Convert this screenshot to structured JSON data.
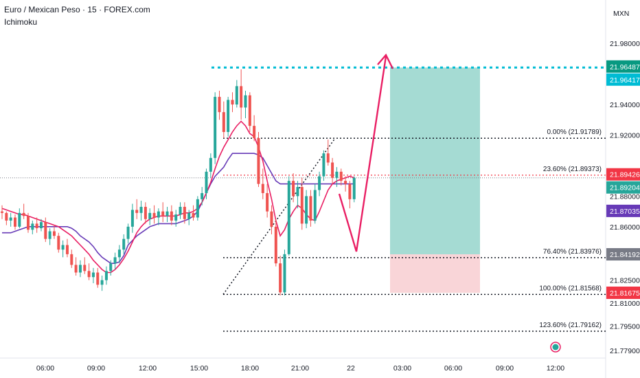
{
  "header": {
    "title": "Euro / Mexican Peso · 15 · FOREX.com",
    "indicator": "Ichimoku"
  },
  "currency": "MXN",
  "colors": {
    "up": "#26a69a",
    "down": "#ef5350",
    "conversion": "#e91e63",
    "base": "#673ab7",
    "target": "#00bcd4",
    "profit_zone": "#a5dbd3",
    "loss_zone": "#f9d5d8",
    "arrow": "#e91e63"
  },
  "chart_data": {
    "type": "candlestick",
    "ylim": [
      21.774,
      22.003
    ],
    "y_ticks": [
      "21.98000",
      "21.94000",
      "21.92000",
      "21.88000",
      "21.86000",
      "21.82500",
      "21.81000",
      "21.79500",
      "21.77900"
    ],
    "x_ticks": [
      "06:00",
      "09:00",
      "12:00",
      "15:00",
      "18:00",
      "21:00",
      "22",
      "03:00",
      "06:00",
      "09:00",
      "12:00"
    ],
    "price_labels": [
      {
        "text": "21.96487",
        "value": 21.96487,
        "color": "#089981"
      },
      {
        "text": "21.96417",
        "value": 21.96417,
        "color": "#00bcd4"
      },
      {
        "text": "21.89426",
        "value": 21.89426,
        "color": "#f23645"
      },
      {
        "text": "21.89204",
        "value": 21.89204,
        "color": "#26a69a"
      },
      {
        "text": "21.87035",
        "value": 21.87035,
        "color": "#673ab7"
      },
      {
        "text": "21.84192",
        "value": 21.84192,
        "color": "#787b86"
      },
      {
        "text": "21.81675",
        "value": 21.81675,
        "color": "#f23645"
      }
    ],
    "fib_levels": [
      {
        "label": "0.00% (21.91789)",
        "value": 21.91789,
        "color": "#131722"
      },
      {
        "label": "23.60% (21.89373)",
        "value": 21.89373,
        "color": "#f23645"
      },
      {
        "label": "76.40% (21.83976)",
        "value": 21.83976,
        "color": "#131722"
      },
      {
        "label": "100.00% (21.81568)",
        "value": 21.81568,
        "color": "#131722"
      },
      {
        "label": "123.60% (21.79162)",
        "value": 21.79162,
        "color": "#131722"
      }
    ],
    "target_price": 21.96417,
    "position": {
      "top": 21.96417,
      "entry": 21.84192,
      "stop": 21.81675
    },
    "candles": [
      [
        21.87,
        21.874,
        21.865,
        21.869
      ],
      [
        21.869,
        21.87,
        21.861,
        21.864
      ],
      [
        21.864,
        21.869,
        21.86,
        21.866
      ],
      [
        21.866,
        21.868,
        21.858,
        21.86
      ],
      [
        21.86,
        21.872,
        21.859,
        21.869
      ],
      [
        21.869,
        21.875,
        21.865,
        21.867
      ],
      [
        21.867,
        21.869,
        21.856,
        21.858
      ],
      [
        21.858,
        21.864,
        21.855,
        21.862
      ],
      [
        21.862,
        21.866,
        21.856,
        21.859
      ],
      [
        21.859,
        21.865,
        21.857,
        21.863
      ],
      [
        21.863,
        21.866,
        21.85,
        21.852
      ],
      [
        21.852,
        21.859,
        21.848,
        21.857
      ],
      [
        21.857,
        21.861,
        21.852,
        21.854
      ],
      [
        21.854,
        21.856,
        21.843,
        21.845
      ],
      [
        21.845,
        21.851,
        21.84,
        21.848
      ],
      [
        21.848,
        21.852,
        21.84,
        21.842
      ],
      [
        21.842,
        21.845,
        21.833,
        21.835
      ],
      [
        21.835,
        21.84,
        21.828,
        21.83
      ],
      [
        21.83,
        21.838,
        21.827,
        21.835
      ],
      [
        21.835,
        21.84,
        21.829,
        21.831
      ],
      [
        21.831,
        21.836,
        21.825,
        21.827
      ],
      [
        21.827,
        21.833,
        21.823,
        21.83
      ],
      [
        21.83,
        21.833,
        21.82,
        21.822
      ],
      [
        21.822,
        21.828,
        21.818,
        21.825
      ],
      [
        21.825,
        21.834,
        21.822,
        21.831
      ],
      [
        21.831,
        21.838,
        21.828,
        21.836
      ],
      [
        21.836,
        21.843,
        21.832,
        21.84
      ],
      [
        21.84,
        21.848,
        21.836,
        21.845
      ],
      [
        21.845,
        21.855,
        21.842,
        21.852
      ],
      [
        21.852,
        21.862,
        21.849,
        21.86
      ],
      [
        21.86,
        21.875,
        21.856,
        21.871
      ],
      [
        21.871,
        21.878,
        21.865,
        21.869
      ],
      [
        21.869,
        21.877,
        21.864,
        21.873
      ],
      [
        21.873,
        21.876,
        21.862,
        21.865
      ],
      [
        21.865,
        21.872,
        21.861,
        21.869
      ],
      [
        21.869,
        21.874,
        21.862,
        21.866
      ],
      [
        21.866,
        21.872,
        21.861,
        21.87
      ],
      [
        21.87,
        21.876,
        21.863,
        21.867
      ],
      [
        21.867,
        21.873,
        21.863,
        21.87
      ],
      [
        21.87,
        21.874,
        21.861,
        21.864
      ],
      [
        21.864,
        21.871,
        21.86,
        21.868
      ],
      [
        21.868,
        21.876,
        21.865,
        21.873
      ],
      [
        21.873,
        21.876,
        21.862,
        21.865
      ],
      [
        21.865,
        21.871,
        21.861,
        21.869
      ],
      [
        21.869,
        21.874,
        21.864,
        21.866
      ],
      [
        21.866,
        21.88,
        21.864,
        21.878
      ],
      [
        21.878,
        21.886,
        21.874,
        21.882
      ],
      [
        21.882,
        21.898,
        21.878,
        21.896
      ],
      [
        21.896,
        21.908,
        21.892,
        21.905
      ],
      [
        21.905,
        21.948,
        21.901,
        21.945
      ],
      [
        21.945,
        21.949,
        21.93,
        21.935
      ],
      [
        21.935,
        21.942,
        21.918,
        21.922
      ],
      [
        21.922,
        21.945,
        21.919,
        21.943
      ],
      [
        21.943,
        21.948,
        21.935,
        21.94
      ],
      [
        21.94,
        21.956,
        21.938,
        21.952
      ],
      [
        21.952,
        21.963,
        21.93,
        21.938
      ],
      [
        21.938,
        21.949,
        21.931,
        21.946
      ],
      [
        21.946,
        21.948,
        21.922,
        21.926
      ],
      [
        21.926,
        21.933,
        21.916,
        21.918
      ],
      [
        21.918,
        21.922,
        21.886,
        21.888
      ],
      [
        21.888,
        21.898,
        21.878,
        21.882
      ],
      [
        21.882,
        21.888,
        21.866,
        21.87
      ],
      [
        21.87,
        21.874,
        21.855,
        21.86
      ],
      [
        21.86,
        21.865,
        21.834,
        21.836
      ],
      [
        21.836,
        21.841,
        21.815,
        21.817
      ],
      [
        21.817,
        21.845,
        21.815,
        21.842
      ],
      [
        21.842,
        21.893,
        21.841,
        21.89
      ],
      [
        21.89,
        21.895,
        21.876,
        21.88
      ],
      [
        21.88,
        21.89,
        21.872,
        21.886
      ],
      [
        21.886,
        21.892,
        21.858,
        21.862
      ],
      [
        21.862,
        21.884,
        21.859,
        21.88
      ],
      [
        21.88,
        21.884,
        21.86,
        21.864
      ],
      [
        21.864,
        21.888,
        21.862,
        21.884
      ],
      [
        21.884,
        21.896,
        21.88,
        21.893
      ],
      [
        21.893,
        21.91,
        21.89,
        21.908
      ],
      [
        21.908,
        21.917,
        21.9,
        21.902
      ],
      [
        21.902,
        21.905,
        21.888,
        21.892
      ],
      [
        21.892,
        21.899,
        21.886,
        21.896
      ],
      [
        21.896,
        21.898,
        21.887,
        21.89
      ],
      [
        21.89,
        21.893,
        21.883,
        21.888
      ],
      [
        21.888,
        21.89,
        21.872,
        21.878
      ],
      [
        21.878,
        21.893,
        21.876,
        21.892
      ]
    ],
    "conversion_line": [
      21.872,
      21.871,
      21.87,
      21.869,
      21.868,
      21.868,
      21.867,
      21.866,
      21.865,
      21.864,
      21.863,
      21.862,
      21.861,
      21.86,
      21.858,
      21.856,
      21.854,
      21.851,
      21.848,
      21.845,
      21.842,
      21.838,
      21.835,
      21.832,
      21.83,
      21.83,
      21.832,
      21.835,
      21.839,
      21.844,
      21.85,
      21.856,
      21.86,
      21.863,
      21.865,
      21.866,
      21.867,
      21.867,
      21.867,
      21.867,
      21.867,
      21.868,
      21.869,
      21.869,
      21.87,
      21.872,
      21.876,
      21.882,
      21.889,
      21.898,
      21.906,
      21.912,
      21.917,
      21.922,
      21.926,
      21.929,
      21.926,
      21.921,
      21.919,
      21.912,
      21.903,
      21.89,
      21.878,
      21.864,
      21.854,
      21.858,
      21.865,
      21.87,
      21.874,
      21.872,
      21.868,
      21.865,
      21.864,
      21.87,
      21.877,
      21.884,
      21.888,
      21.89,
      21.891,
      21.892,
      21.893,
      21.892
    ],
    "base_line": [
      21.856,
      21.856,
      21.856,
      21.857,
      21.858,
      21.859,
      21.86,
      21.86,
      21.86,
      21.86,
      21.86,
      21.86,
      21.86,
      21.86,
      21.86,
      21.86,
      21.859,
      21.857,
      21.854,
      21.852,
      21.85,
      21.847,
      21.843,
      21.84,
      21.838,
      21.836,
      21.836,
      21.837,
      21.841,
      21.848,
      21.851,
      21.854,
      21.856,
      21.858,
      21.86,
      21.861,
      21.862,
      21.862,
      21.862,
      21.862,
      21.862,
      21.863,
      21.864,
      21.865,
      21.867,
      21.87,
      21.876,
      21.882,
      21.888,
      21.893,
      21.896,
      21.899,
      21.904,
      21.908,
      21.908,
      21.908,
      21.908,
      21.908,
      21.908,
      21.907,
      21.905,
      21.9,
      21.895,
      21.89,
      21.888,
      21.888,
      21.888,
      21.888,
      21.888,
      21.888,
      21.888,
      21.888,
      21.888,
      21.888,
      21.888,
      21.888,
      21.888,
      21.888,
      21.888,
      21.888,
      21.888,
      21.888
    ]
  }
}
